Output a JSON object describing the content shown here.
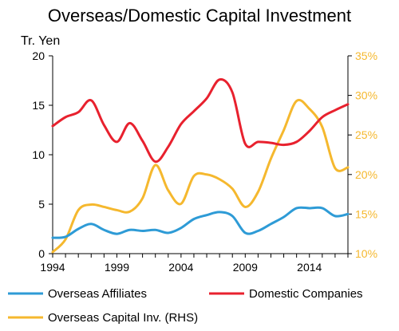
{
  "chart_data": {
    "type": "line",
    "title": "Overseas/Domestic Capital Investment",
    "ylabel": "Tr. Yen",
    "xlim": [
      1994,
      2017
    ],
    "x_ticks": [
      "1994",
      "1999",
      "2004",
      "2009",
      "2014"
    ],
    "ylim_left": [
      0,
      20
    ],
    "y_ticks_left": [
      "0",
      "5",
      "10",
      "15",
      "20"
    ],
    "ylim_right": [
      10,
      35
    ],
    "y_ticks_right": [
      "10%",
      "15%",
      "20%",
      "25%",
      "30%",
      "35%"
    ],
    "grid": false,
    "legend_position": "bottom",
    "series": [
      {
        "name": "Overseas Affiliates",
        "axis": "left",
        "color": "#2E9BD6",
        "x": [
          1994,
          1995,
          1996,
          1997,
          1998,
          1999,
          2000,
          2001,
          2002,
          2003,
          2004,
          2005,
          2006,
          2007,
          2008,
          2009,
          2010,
          2011,
          2012,
          2013,
          2014,
          2015,
          2016,
          2017
        ],
        "y": [
          1.6,
          1.7,
          2.5,
          3.0,
          2.4,
          2.0,
          2.4,
          2.3,
          2.4,
          2.1,
          2.6,
          3.5,
          3.9,
          4.2,
          3.8,
          2.1,
          2.3,
          3.0,
          3.7,
          4.6,
          4.6,
          4.6,
          3.8,
          4.0
        ]
      },
      {
        "name": "Domestic Companies",
        "axis": "left",
        "color": "#E8212E",
        "x": [
          1994,
          1995,
          1996,
          1997,
          1998,
          1999,
          2000,
          2001,
          2002,
          2003,
          2004,
          2005,
          2006,
          2007,
          2008,
          2009,
          2010,
          2011,
          2012,
          2013,
          2014,
          2015,
          2016,
          2017
        ],
        "y": [
          12.9,
          13.8,
          14.3,
          15.5,
          13.0,
          11.3,
          13.2,
          11.4,
          9.3,
          10.8,
          13.1,
          14.4,
          15.7,
          17.6,
          16.3,
          11.1,
          11.3,
          11.2,
          11.0,
          11.3,
          12.4,
          13.8,
          14.5,
          15.1
        ]
      },
      {
        "name": "Overseas Capital Inv. (RHS)",
        "axis": "right",
        "color": "#F5B82E",
        "x": [
          1994,
          1995,
          1996,
          1997,
          1998,
          1999,
          2000,
          2001,
          2002,
          2003,
          2004,
          2005,
          2006,
          2007,
          2008,
          2009,
          2010,
          2011,
          2012,
          2013,
          2014,
          2015,
          2016,
          2017
        ],
        "y": [
          10.2,
          11.8,
          15.5,
          16.2,
          15.9,
          15.5,
          15.3,
          17.0,
          21.2,
          18.0,
          16.3,
          19.8,
          20.0,
          19.4,
          18.2,
          15.9,
          17.8,
          22.0,
          25.6,
          29.3,
          28.3,
          26.0,
          20.8,
          20.9
        ]
      }
    ]
  }
}
